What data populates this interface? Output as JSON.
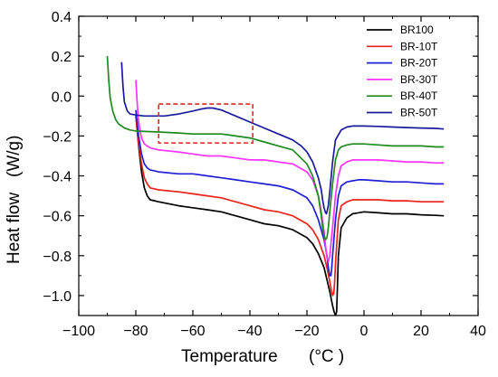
{
  "chart_data": {
    "type": "line",
    "title": "",
    "xlabel": "Temperature",
    "xlabel_unit": "(°C )",
    "ylabel": "Heat flow",
    "ylabel_unit": "(W/g)",
    "xlim": [
      -100,
      40
    ],
    "ylim": [
      -1.1,
      0.4
    ],
    "xticks": [
      -100,
      -80,
      -60,
      -40,
      -20,
      0,
      20,
      40
    ],
    "yticks": [
      -1.0,
      -0.8,
      -0.6,
      -0.4,
      -0.2,
      0.0,
      0.2,
      0.4
    ],
    "xtick_labels": [
      "−100",
      "−80",
      "−60",
      "−40",
      "−20",
      "0",
      "20",
      "40"
    ],
    "ytick_labels": [
      "−1.0",
      "−0.8",
      "−0.6",
      "−0.4",
      "−0.2",
      "0.0",
      "0.2",
      "0.4"
    ],
    "grid": false,
    "legend_position": "top-right",
    "annotation_box": {
      "x": [
        -72,
        -39
      ],
      "y": [
        -0.235,
        -0.04
      ],
      "color": "#e8231a",
      "style": "dashed"
    },
    "series": [
      {
        "name": "BR100",
        "color": "#000000",
        "x": [
          -80,
          -79,
          -78,
          -77,
          -76,
          -75,
          -72,
          -65,
          -60,
          -55,
          -50,
          -45,
          -40,
          -35,
          -30,
          -25,
          -20,
          -18,
          -16,
          -14,
          -13,
          -12,
          -11,
          -10.5,
          -10,
          -9.6,
          -9.3,
          -9,
          -8,
          -6,
          -4,
          -2,
          0,
          5,
          10,
          15,
          20,
          25,
          28
        ],
        "y": [
          -0.1,
          -0.25,
          -0.38,
          -0.46,
          -0.5,
          -0.52,
          -0.53,
          -0.55,
          -0.56,
          -0.57,
          -0.58,
          -0.6,
          -0.62,
          -0.64,
          -0.65,
          -0.67,
          -0.71,
          -0.74,
          -0.79,
          -0.86,
          -0.92,
          -0.98,
          -1.05,
          -1.08,
          -1.1,
          -1.08,
          -0.95,
          -0.8,
          -0.66,
          -0.61,
          -0.59,
          -0.585,
          -0.58,
          -0.585,
          -0.59,
          -0.59,
          -0.595,
          -0.598,
          -0.6
        ]
      },
      {
        "name": "BR-10T",
        "color": "#e8231a",
        "x": [
          -80,
          -79,
          -78,
          -77,
          -76,
          -75,
          -72,
          -65,
          -60,
          -55,
          -50,
          -45,
          -40,
          -35,
          -30,
          -25,
          -20,
          -18,
          -16,
          -14,
          -13,
          -12,
          -11.5,
          -11,
          -10.6,
          -10.3,
          -10,
          -9,
          -8,
          -6,
          -4,
          -2,
          0,
          5,
          10,
          15,
          20,
          25,
          28
        ],
        "y": [
          -0.1,
          -0.24,
          -0.34,
          -0.41,
          -0.44,
          -0.46,
          -0.47,
          -0.48,
          -0.49,
          -0.5,
          -0.51,
          -0.53,
          -0.55,
          -0.57,
          -0.58,
          -0.6,
          -0.64,
          -0.67,
          -0.72,
          -0.8,
          -0.86,
          -0.93,
          -0.97,
          -1.0,
          -0.99,
          -0.93,
          -0.84,
          -0.62,
          -0.55,
          -0.53,
          -0.52,
          -0.52,
          -0.52,
          -0.52,
          -0.525,
          -0.525,
          -0.53,
          -0.53,
          -0.53
        ]
      },
      {
        "name": "BR-20T",
        "color": "#1f1fd6",
        "x": [
          -80,
          -79,
          -78,
          -77,
          -76,
          -75,
          -72,
          -65,
          -60,
          -55,
          -50,
          -45,
          -40,
          -35,
          -30,
          -25,
          -20,
          -18,
          -16,
          -14,
          -13,
          -12.5,
          -12,
          -11.6,
          -11.3,
          -11,
          -10,
          -9,
          -8,
          -6,
          -4,
          -2,
          0,
          5,
          10,
          15,
          20,
          25,
          28
        ],
        "y": [
          -0.07,
          -0.2,
          -0.29,
          -0.34,
          -0.36,
          -0.37,
          -0.38,
          -0.39,
          -0.39,
          -0.4,
          -0.41,
          -0.42,
          -0.43,
          -0.44,
          -0.45,
          -0.47,
          -0.51,
          -0.55,
          -0.62,
          -0.72,
          -0.8,
          -0.86,
          -0.9,
          -0.9,
          -0.86,
          -0.8,
          -0.62,
          -0.5,
          -0.45,
          -0.43,
          -0.425,
          -0.42,
          -0.42,
          -0.425,
          -0.43,
          -0.43,
          -0.435,
          -0.44,
          -0.44
        ]
      },
      {
        "name": "BR-30T",
        "color": "#ff33ff",
        "x": [
          -80,
          -79.5,
          -79,
          -78,
          -77,
          -76,
          -75,
          -72,
          -65,
          -60,
          -55,
          -50,
          -45,
          -40,
          -35,
          -30,
          -25,
          -20,
          -18,
          -16,
          -15,
          -14,
          -13.5,
          -13,
          -12.5,
          -12,
          -11,
          -10,
          -9,
          -8,
          -6,
          -4,
          -2,
          0,
          5,
          10,
          15,
          20,
          25,
          28
        ],
        "y": [
          0.08,
          -0.04,
          -0.13,
          -0.21,
          -0.24,
          -0.25,
          -0.26,
          -0.27,
          -0.28,
          -0.29,
          -0.3,
          -0.3,
          -0.31,
          -0.32,
          -0.32,
          -0.33,
          -0.34,
          -0.38,
          -0.42,
          -0.5,
          -0.58,
          -0.68,
          -0.75,
          -0.81,
          -0.83,
          -0.8,
          -0.66,
          -0.5,
          -0.4,
          -0.35,
          -0.33,
          -0.32,
          -0.32,
          -0.32,
          -0.32,
          -0.325,
          -0.33,
          -0.33,
          -0.335,
          -0.335
        ]
      },
      {
        "name": "BR-40T",
        "color": "#1e8a1e",
        "x": [
          -90,
          -89.5,
          -89,
          -88,
          -87,
          -86,
          -84,
          -82,
          -80,
          -76,
          -72,
          -65,
          -60,
          -55,
          -50,
          -45,
          -40,
          -35,
          -30,
          -25,
          -20,
          -18,
          -16,
          -15,
          -14.5,
          -14,
          -13.5,
          -13,
          -12.5,
          -12,
          -11,
          -10,
          -9,
          -8,
          -6,
          -4,
          -2,
          0,
          5,
          10,
          15,
          20,
          25,
          28
        ],
        "y": [
          0.2,
          0.08,
          -0.01,
          -0.08,
          -0.12,
          -0.14,
          -0.16,
          -0.17,
          -0.175,
          -0.178,
          -0.18,
          -0.185,
          -0.19,
          -0.19,
          -0.19,
          -0.2,
          -0.21,
          -0.23,
          -0.25,
          -0.27,
          -0.34,
          -0.4,
          -0.5,
          -0.6,
          -0.66,
          -0.7,
          -0.72,
          -0.71,
          -0.66,
          -0.58,
          -0.44,
          -0.32,
          -0.27,
          -0.255,
          -0.245,
          -0.24,
          -0.24,
          -0.24,
          -0.245,
          -0.25,
          -0.25,
          -0.25,
          -0.255,
          -0.255
        ]
      },
      {
        "name": "BR-50T",
        "color": "#1a1a9e",
        "x": [
          -85,
          -84.5,
          -84,
          -83,
          -82,
          -80,
          -77,
          -74,
          -70,
          -65,
          -60,
          -57,
          -55,
          -53,
          -50,
          -45,
          -40,
          -35,
          -30,
          -25,
          -22,
          -20,
          -18,
          -16,
          -15,
          -14.5,
          -14,
          -13.6,
          -13.2,
          -13,
          -12.5,
          -12,
          -11,
          -10,
          -8,
          -6,
          -4,
          -2,
          0,
          5,
          10,
          15,
          20,
          25,
          28
        ],
        "y": [
          0.17,
          0.05,
          -0.03,
          -0.075,
          -0.09,
          -0.095,
          -0.1,
          -0.1,
          -0.1,
          -0.09,
          -0.075,
          -0.065,
          -0.06,
          -0.06,
          -0.07,
          -0.1,
          -0.13,
          -0.16,
          -0.19,
          -0.22,
          -0.25,
          -0.28,
          -0.33,
          -0.41,
          -0.47,
          -0.52,
          -0.56,
          -0.58,
          -0.59,
          -0.58,
          -0.55,
          -0.48,
          -0.33,
          -0.22,
          -0.17,
          -0.155,
          -0.15,
          -0.15,
          -0.15,
          -0.152,
          -0.155,
          -0.158,
          -0.16,
          -0.162,
          -0.165
        ]
      }
    ]
  }
}
